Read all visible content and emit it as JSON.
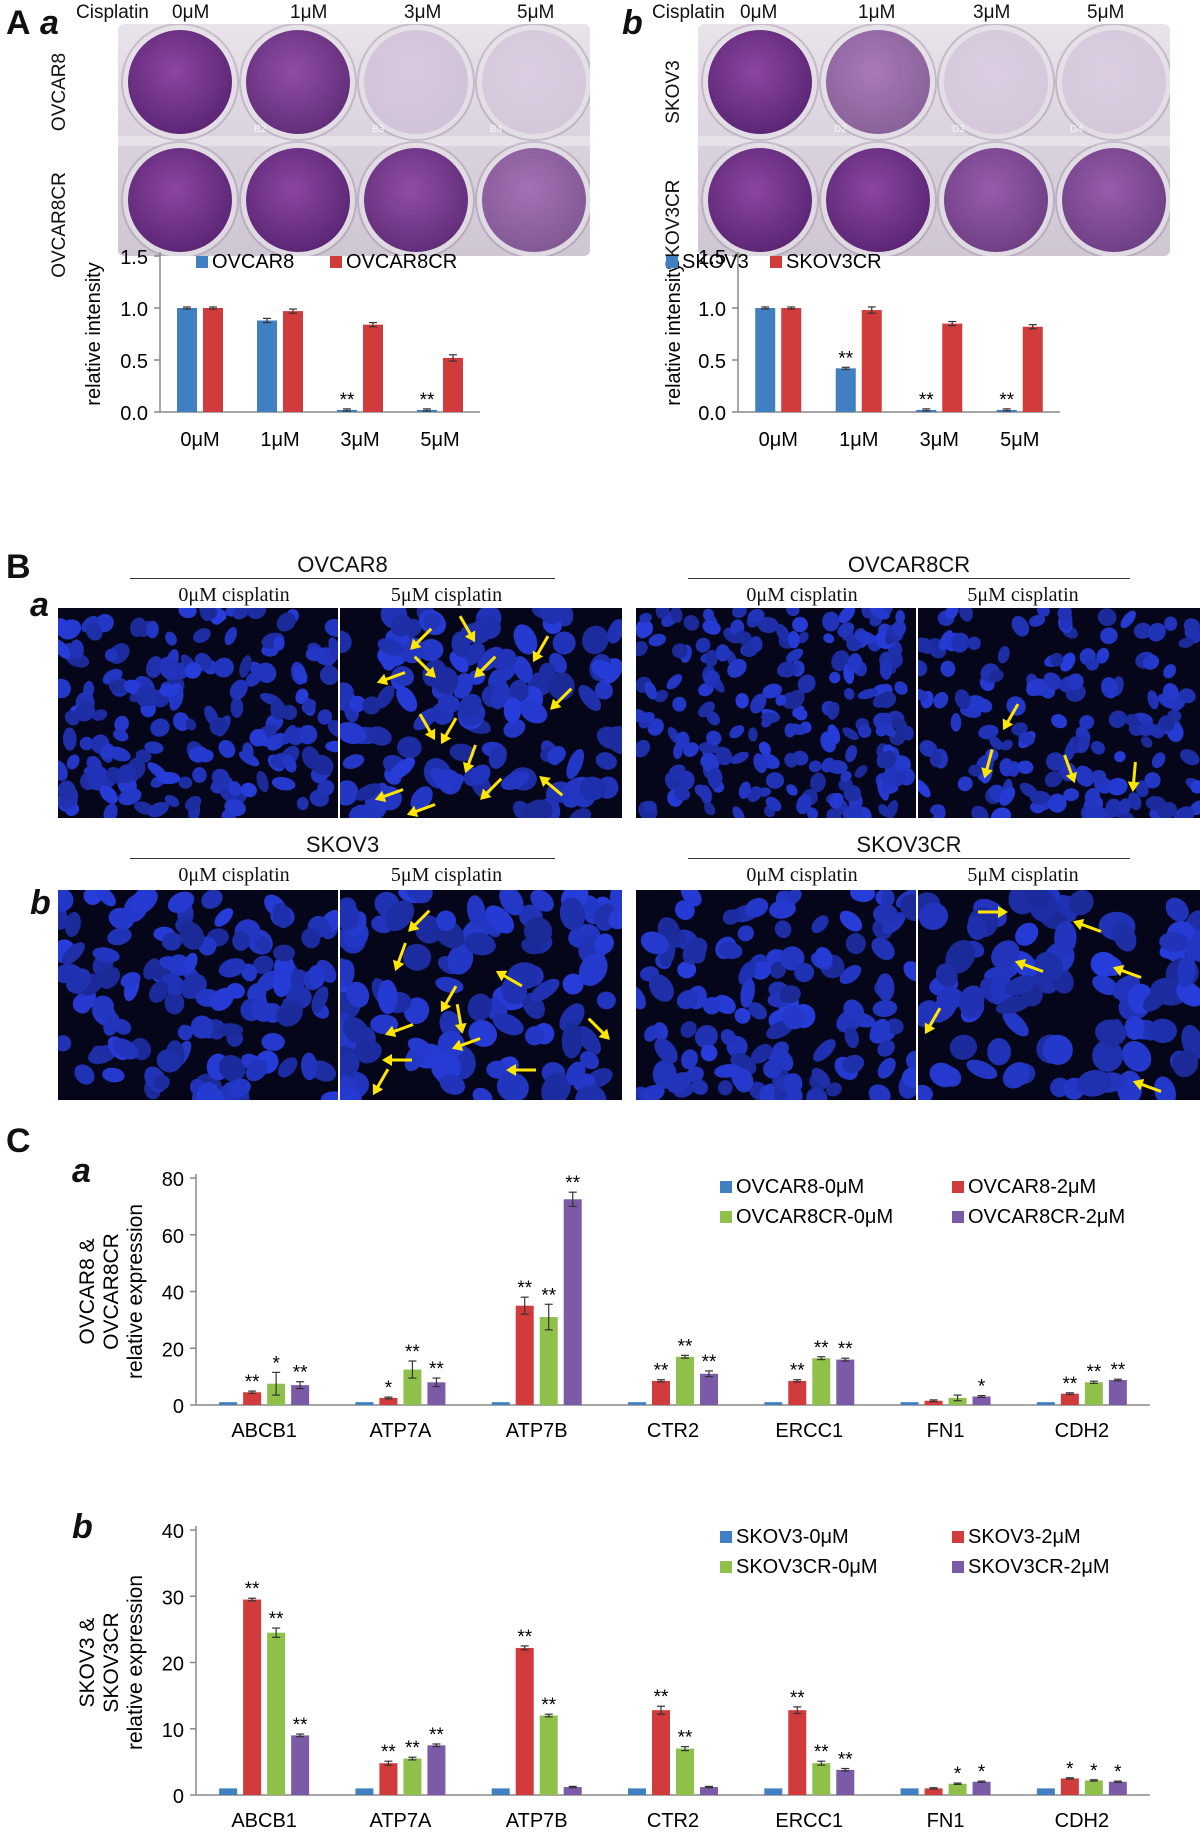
{
  "panels": {
    "A": "A",
    "Aa": "a",
    "Ab": "b",
    "B": "B",
    "Ba": "a",
    "Bb": "b",
    "C": "C",
    "Ca": "a",
    "Cb": "b"
  },
  "plates": {
    "a": {
      "cisplatin_label": "Cisplatin",
      "doses": [
        "0μM",
        "1μM",
        "3μM",
        "5μM"
      ],
      "rows": [
        "OVCAR8",
        "OVCAR8CR"
      ],
      "well_marks": [
        "B2",
        "B3",
        "B4"
      ],
      "well_stain": [
        [
          1.0,
          0.95,
          0.08,
          0.05
        ],
        [
          1.0,
          1.0,
          0.95,
          0.7
        ]
      ]
    },
    "b": {
      "cisplatin_label": "Cisplatin",
      "doses": [
        "0μM",
        "1μM",
        "3μM",
        "5μM"
      ],
      "rows": [
        "SKOV3",
        "SKOV3CR"
      ],
      "well_marks": [
        "D2",
        "D3",
        "D4"
      ],
      "well_stain": [
        [
          1.0,
          0.65,
          0.05,
          0.05
        ],
        [
          1.0,
          1.0,
          0.85,
          0.85
        ]
      ]
    }
  },
  "fluorescence": {
    "a": {
      "groups": [
        {
          "title": "OVCAR8",
          "left": "0μM cisplatin",
          "right": "5μM cisplatin"
        },
        {
          "title": "OVCAR8CR",
          "left": "0μM cisplatin",
          "right": "5μM cisplatin"
        }
      ]
    },
    "b": {
      "groups": [
        {
          "title": "SKOV3",
          "left": "0μM cisplatin",
          "right": "5μM cisplatin"
        },
        {
          "title": "SKOV3CR",
          "left": "0μM cisplatin",
          "right": "5μM cisplatin"
        }
      ]
    }
  },
  "colors": {
    "blue": "#3f7fc2",
    "red": "#d13b3b",
    "green": "#8fc04a",
    "purple": "#7b5aa8",
    "arrow": "#ffe600",
    "nucleus": "#2233b8"
  },
  "chart_data": [
    {
      "id": "Aa",
      "type": "bar",
      "ylabel": "relative intensity",
      "ylim": [
        0,
        1.5
      ],
      "yticks": [
        "0.0",
        "0.5",
        "1.0",
        "1.5"
      ],
      "categories": [
        "0μM",
        "1μM",
        "3μM",
        "5μM"
      ],
      "series": [
        {
          "name": "OVCAR8",
          "color": "#3f7fc2",
          "values": [
            1.0,
            0.88,
            0.02,
            0.02
          ],
          "errors": [
            0.01,
            0.02,
            0.01,
            0.01
          ],
          "sig": [
            "",
            "",
            "**",
            "**"
          ]
        },
        {
          "name": "OVCAR8CR",
          "color": "#d13b3b",
          "values": [
            1.0,
            0.97,
            0.84,
            0.52
          ],
          "errors": [
            0.01,
            0.02,
            0.02,
            0.03
          ],
          "sig": [
            "",
            "",
            "",
            ""
          ]
        }
      ]
    },
    {
      "id": "Ab",
      "type": "bar",
      "ylabel": "relative intensity",
      "ylim": [
        0,
        1.5
      ],
      "yticks": [
        "0.0",
        "0.5",
        "1.0",
        "1.5"
      ],
      "categories": [
        "0μM",
        "1μM",
        "3μM",
        "5μM"
      ],
      "series": [
        {
          "name": "SKOV3",
          "color": "#3f7fc2",
          "values": [
            1.0,
            0.42,
            0.02,
            0.02
          ],
          "errors": [
            0.01,
            0.01,
            0.01,
            0.01
          ],
          "sig": [
            "",
            "**",
            "**",
            "**"
          ]
        },
        {
          "name": "SKOV3CR",
          "color": "#d13b3b",
          "values": [
            1.0,
            0.98,
            0.85,
            0.82
          ],
          "errors": [
            0.01,
            0.03,
            0.02,
            0.02
          ],
          "sig": [
            "",
            "",
            "",
            ""
          ]
        }
      ]
    },
    {
      "id": "Ca",
      "type": "bar",
      "ylabel": [
        "OVCAR8 &",
        "OVCAR8CR",
        "relative expression"
      ],
      "ylim": [
        0,
        80
      ],
      "yticks": [
        "0",
        "20",
        "40",
        "60",
        "80"
      ],
      "categories": [
        "ABCB1",
        "ATP7A",
        "ATP7B",
        "CTR2",
        "ERCC1",
        "FN1",
        "CDH2"
      ],
      "series": [
        {
          "name": "OVCAR8-0μM",
          "color": "#3f7fc2",
          "values": [
            1,
            1,
            1,
            1,
            1,
            1,
            1
          ],
          "errors": [
            0,
            0,
            0,
            0,
            0,
            0,
            0
          ],
          "sig": [
            "",
            "",
            "",
            "",
            "",
            "",
            ""
          ]
        },
        {
          "name": "OVCAR8-2μM",
          "color": "#d13b3b",
          "values": [
            4.5,
            2.5,
            35,
            8.5,
            8.5,
            1.5,
            4
          ],
          "errors": [
            0.4,
            0.3,
            3,
            0.4,
            0.4,
            0.3,
            0.3
          ],
          "sig": [
            "**",
            "*",
            "**",
            "**",
            "**",
            "",
            "**"
          ]
        },
        {
          "name": "OVCAR8CR-0μM",
          "color": "#8fc04a",
          "values": [
            7.5,
            12.5,
            31,
            17,
            16.5,
            2.5,
            8
          ],
          "errors": [
            4,
            3,
            4.5,
            0.5,
            0.5,
            1,
            0.4
          ],
          "sig": [
            "*",
            "**",
            "**",
            "**",
            "**",
            "",
            "**"
          ]
        },
        {
          "name": "OVCAR8CR-2μM",
          "color": "#7b5aa8",
          "values": [
            7,
            8,
            72.5,
            11,
            16,
            3,
            8.8
          ],
          "errors": [
            1.2,
            1.5,
            2.5,
            1,
            0.5,
            0.3,
            0.3
          ],
          "sig": [
            "**",
            "**",
            "**",
            "**",
            "**",
            "*",
            "**"
          ]
        }
      ]
    },
    {
      "id": "Cb",
      "type": "bar",
      "ylabel": [
        "SKOV3 &",
        "SKOV3CR",
        "relative expression"
      ],
      "ylim": [
        0,
        40
      ],
      "yticks": [
        "0",
        "10",
        "20",
        "30",
        "40"
      ],
      "categories": [
        "ABCB1",
        "ATP7A",
        "ATP7B",
        "CTR2",
        "ERCC1",
        "FN1",
        "CDH2"
      ],
      "series": [
        {
          "name": "SKOV3-0μM",
          "color": "#3f7fc2",
          "values": [
            1,
            1,
            1,
            1,
            1,
            1,
            1
          ],
          "errors": [
            0,
            0,
            0,
            0,
            0,
            0,
            0
          ],
          "sig": [
            "",
            "",
            "",
            "",
            "",
            "",
            ""
          ]
        },
        {
          "name": "SKOV3-2μM",
          "color": "#d13b3b",
          "values": [
            29.5,
            4.8,
            22.2,
            12.8,
            12.8,
            1,
            2.5
          ],
          "errors": [
            0.2,
            0.3,
            0.3,
            0.6,
            0.5,
            0.1,
            0.1
          ],
          "sig": [
            "**",
            "**",
            "**",
            "**",
            "**",
            "",
            "*"
          ]
        },
        {
          "name": "SKOV3CR-0μM",
          "color": "#8fc04a",
          "values": [
            24.5,
            5.5,
            12,
            7,
            4.8,
            1.7,
            2.2
          ],
          "errors": [
            0.7,
            0.2,
            0.2,
            0.3,
            0.3,
            0.1,
            0.1
          ],
          "sig": [
            "**",
            "**",
            "**",
            "**",
            "**",
            "*",
            "*"
          ]
        },
        {
          "name": "SKOV3CR-2μM",
          "color": "#7b5aa8",
          "values": [
            9,
            7.5,
            1.2,
            1.2,
            3.8,
            2,
            2
          ],
          "errors": [
            0.2,
            0.2,
            0.1,
            0.1,
            0.2,
            0.1,
            0.1
          ],
          "sig": [
            "**",
            "**",
            "",
            "",
            "**",
            "*",
            "*"
          ]
        }
      ]
    }
  ]
}
